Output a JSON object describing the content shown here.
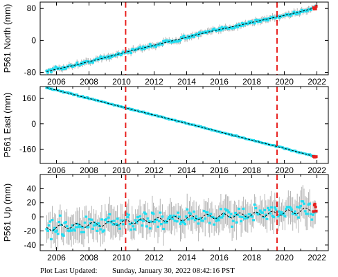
{
  "footer": {
    "label": "Plot Last Updated:",
    "timestamp": "Sunday, January 30, 2022 08:42:16 PST"
  },
  "colors": {
    "errorbar": "#b4b4b4",
    "data": "#22ddf0",
    "model": "#000000",
    "event_line": "#e8201e",
    "recent": "#e8201e"
  },
  "chart_data": [
    {
      "type": "scatter",
      "ylabel": "P561 North (mm)",
      "xlim": [
        2005.0,
        2022.7
      ],
      "ylim": [
        -86,
        96
      ],
      "yticks": [
        80,
        0,
        -80
      ],
      "xticks": [
        2006,
        2008,
        2010,
        2012,
        2014,
        2016,
        2018,
        2020,
        2022
      ],
      "event_lines": [
        2010.25,
        2019.55
      ],
      "series": [
        {
          "x": [
            2005.4,
            2006.0,
            2007.0,
            2008.0,
            2009.0,
            2010.0,
            2011.0,
            2012.0,
            2013.0,
            2014.0,
            2015.0,
            2016.0,
            2017.0,
            2018.0,
            2019.0,
            2020.0,
            2021.0,
            2021.9
          ],
          "values": [
            -78,
            -72,
            -63,
            -53,
            -43,
            -32,
            -22,
            -12,
            -2,
            8,
            18,
            27,
            36,
            45,
            54,
            63,
            72,
            82
          ],
          "scatter": 3.5,
          "err": 7
        }
      ]
    },
    {
      "type": "scatter",
      "ylabel": "P561 East (mm)",
      "xlim": [
        2005.0,
        2022.7
      ],
      "ylim": [
        -250,
        235
      ],
      "yticks": [
        160,
        0,
        -160
      ],
      "xticks": [
        2006,
        2008,
        2010,
        2012,
        2014,
        2016,
        2018,
        2020,
        2022
      ],
      "event_lines": [
        2010.25,
        2019.55
      ],
      "series": [
        {
          "x": [
            2005.4,
            2006.0,
            2008.0,
            2010.0,
            2012.0,
            2014.0,
            2016.0,
            2018.0,
            2020.0,
            2021.9
          ],
          "values": [
            228,
            212,
            160,
            107,
            55,
            3,
            -50,
            -103,
            -155,
            -207
          ],
          "scatter": 2.5,
          "err": 5
        }
      ]
    },
    {
      "type": "scatter",
      "ylabel": "P561 Up (mm)",
      "xlim": [
        2005.0,
        2022.7
      ],
      "ylim": [
        -48,
        60
      ],
      "yticks": [
        40,
        20,
        0,
        -20,
        -40
      ],
      "xticks": [
        2006,
        2008,
        2010,
        2012,
        2014,
        2016,
        2018,
        2020,
        2022
      ],
      "event_lines": [
        2010.25,
        2019.55
      ],
      "series": [
        {
          "x": [
            2005.4,
            2006.0,
            2007.0,
            2008.0,
            2009.0,
            2010.0,
            2011.0,
            2012.0,
            2013.0,
            2014.0,
            2015.0,
            2016.0,
            2017.0,
            2018.0,
            2019.0,
            2020.0,
            2021.0,
            2021.9
          ],
          "values": [
            -17,
            -15,
            -13,
            -11,
            -10,
            -8,
            -6,
            -5,
            -3,
            -2,
            0,
            1,
            2,
            3,
            4,
            6,
            8,
            12
          ],
          "scatter": 9,
          "err": 18,
          "seasonal": 3.5
        }
      ]
    }
  ]
}
